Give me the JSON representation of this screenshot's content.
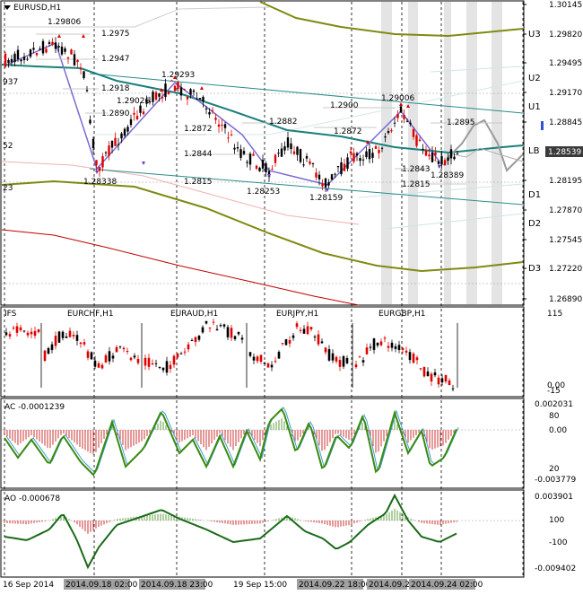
{
  "window": {
    "title": "EURUSD,H1"
  },
  "colors": {
    "bull": "#000000",
    "bear": "#e00000",
    "ma_teal": "#1a7f7a",
    "band_olive": "#7f8a12",
    "band_red": "#c00000",
    "channel": "#2a8c8c",
    "zigzag": "#7a6ad6",
    "forecast": "#9a9a9a",
    "ac_green": "#3a8a10",
    "ac_blue": "#40a0d0",
    "ao_green": "#1a6a1a",
    "price_tag_bg": "#3a3a3a"
  },
  "main": {
    "price_axis": [
      "1.30145",
      "1.29820",
      "1.29495",
      "1.29170",
      "1.28845",
      "1.28539",
      "1.28195",
      "1.27870",
      "1.27545",
      "1.27220",
      "1.26890"
    ],
    "current_price": "1.28539",
    "levels": [
      "U3",
      "U2",
      "U1",
      "LB",
      "D1",
      "D2",
      "D3"
    ],
    "pivots": [
      "1.29806",
      "1.29293",
      "1.29026",
      "1.28338",
      "1.28253",
      "1.28159",
      "1.29006",
      "1.28389"
    ],
    "small_labels": [
      "1.2975",
      "1.2947",
      "1.2918",
      "1.2890",
      "1.2872",
      "1.2844",
      "1.2815",
      "1.2882",
      "1.2872",
      "1.2900",
      "1.2895",
      "1.2843",
      "1.2815"
    ],
    "left_labels": [
      "937",
      "52",
      "23"
    ]
  },
  "ifs": {
    "title": "IFS",
    "symbols": [
      "EURCHF,H1",
      "EURAUD,H1",
      "EURJPY,H1",
      "EURGBP,H1"
    ],
    "scale": [
      "115",
      "0.00",
      "-15"
    ]
  },
  "ac": {
    "title": "AC -0.0001239",
    "scale": [
      "0.002031",
      "80",
      "0.00",
      "20",
      "-0.003779"
    ]
  },
  "ao": {
    "title": "AO -0.000678",
    "scale": [
      "0.003901",
      "100",
      "0.00",
      "-100",
      "-0.009402"
    ]
  },
  "time_axis": [
    "16 Sep 2014",
    "2014.09.18 02:00",
    "2014.09.18 23:00",
    "19 Sep 15:00",
    "2014.09.22 18:00",
    "2014.09.2",
    "2014.09.24 02:00"
  ]
}
